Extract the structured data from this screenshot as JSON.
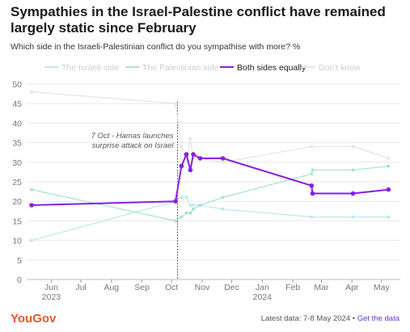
{
  "header": {
    "title": "Sympathies in the Israel-Palestine conflict have remained largely static since February",
    "subtitle": "Which side in the Israeli-Palestinian conflict do you sympathise with more? %"
  },
  "footer": {
    "logo": "YouGov",
    "latest": "Latest data: 7-8 May 2024 • ",
    "link": "Get the data"
  },
  "colors": {
    "israeli": "#bfe8ee",
    "palestinian": "#a9e3d6",
    "both": "#8a1ee0",
    "dont_know": "#e6e6e6",
    "annotation_line": "#333333"
  },
  "chart_data": {
    "type": "line",
    "title": "Sympathies in the Israel-Palestine conflict have remained largely static since February",
    "subtitle": "Which side in the Israeli-Palestinian conflict do you sympathise with more? %",
    "ylim": [
      0,
      50
    ],
    "yticks": [
      0,
      5,
      10,
      15,
      20,
      25,
      30,
      35,
      40,
      45,
      50
    ],
    "xlim": [
      "2023-05-07",
      "2024-05-20"
    ],
    "xticks": [
      {
        "date": "2023-06-01",
        "label": "Jun",
        "sub": "2023"
      },
      {
        "date": "2023-07-01",
        "label": "Jul",
        "sub": ""
      },
      {
        "date": "2023-08-01",
        "label": "Aug",
        "sub": ""
      },
      {
        "date": "2023-09-01",
        "label": "Sep",
        "sub": ""
      },
      {
        "date": "2023-10-01",
        "label": "Oct",
        "sub": ""
      },
      {
        "date": "2023-11-01",
        "label": "Nov",
        "sub": ""
      },
      {
        "date": "2023-12-01",
        "label": "Dec",
        "sub": ""
      },
      {
        "date": "2024-01-01",
        "label": "Jan",
        "sub": "2024"
      },
      {
        "date": "2024-02-01",
        "label": "Feb",
        "sub": ""
      },
      {
        "date": "2024-03-01",
        "label": "Mar",
        "sub": ""
      },
      {
        "date": "2024-04-01",
        "label": "Apr",
        "sub": ""
      },
      {
        "date": "2024-05-01",
        "label": "May",
        "sub": ""
      }
    ],
    "legend": "top",
    "grid": true,
    "annotation": {
      "date": "2023-10-07",
      "lines": [
        "7 Oct - Hamas launches",
        "surprise attack on Israel"
      ]
    },
    "series": [
      {
        "name": "The Israeli side",
        "key": "israeli",
        "points": [
          [
            "2023-05-12",
            10
          ],
          [
            "2023-10-05",
            20
          ],
          [
            "2023-10-11",
            21
          ],
          [
            "2023-10-16",
            21
          ],
          [
            "2023-10-20",
            19
          ],
          [
            "2023-10-23",
            19
          ],
          [
            "2023-10-30",
            19
          ],
          [
            "2023-11-22",
            18
          ],
          [
            "2024-02-20",
            16
          ],
          [
            "2024-04-02",
            16
          ],
          [
            "2024-05-08",
            16
          ]
        ]
      },
      {
        "name": "The Palestinian side",
        "key": "palestinian",
        "points": [
          [
            "2023-05-12",
            23
          ],
          [
            "2023-10-05",
            15
          ],
          [
            "2023-10-11",
            16
          ],
          [
            "2023-10-16",
            17
          ],
          [
            "2023-10-20",
            17
          ],
          [
            "2023-10-23",
            18
          ],
          [
            "2023-10-30",
            19
          ],
          [
            "2023-11-22",
            21
          ],
          [
            "2024-02-20",
            27
          ],
          [
            "2024-02-21",
            28
          ],
          [
            "2024-04-02",
            28
          ],
          [
            "2024-05-08",
            29
          ]
        ]
      },
      {
        "name": "Both sides equally",
        "key": "both",
        "points": [
          [
            "2023-05-12",
            19
          ],
          [
            "2023-10-05",
            20
          ],
          [
            "2023-10-11",
            29
          ],
          [
            "2023-10-16",
            32
          ],
          [
            "2023-10-20",
            28
          ],
          [
            "2023-10-23",
            32
          ],
          [
            "2023-10-30",
            31
          ],
          [
            "2023-11-22",
            31
          ],
          [
            "2024-02-20",
            24
          ],
          [
            "2024-02-21",
            22
          ],
          [
            "2024-04-02",
            22
          ],
          [
            "2024-05-08",
            23
          ]
        ]
      },
      {
        "name": "Don't know",
        "key": "dont_know",
        "points": [
          [
            "2023-05-12",
            48
          ],
          [
            "2023-10-05",
            45
          ],
          [
            "2023-10-11",
            34
          ],
          [
            "2023-10-16",
            30
          ],
          [
            "2023-10-20",
            36
          ],
          [
            "2023-10-23",
            31
          ],
          [
            "2023-10-30",
            31
          ],
          [
            "2023-11-22",
            30
          ],
          [
            "2024-02-20",
            34
          ],
          [
            "2024-04-02",
            34
          ],
          [
            "2024-05-08",
            31
          ]
        ]
      }
    ]
  }
}
